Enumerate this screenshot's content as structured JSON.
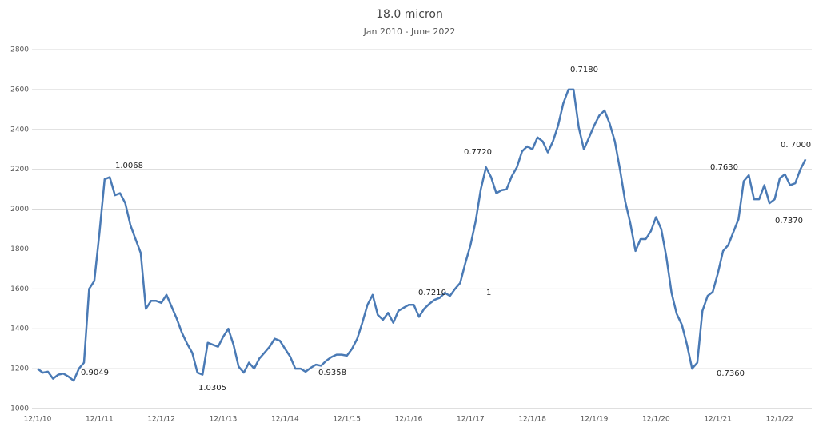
{
  "chart_data": {
    "type": "line",
    "title": "18.0 micron",
    "subtitle": "Jan 2010 - June 2022",
    "categories": [
      "12/1/10",
      null,
      null,
      null,
      null,
      null,
      null,
      null,
      null,
      null,
      null,
      null,
      "12/1/11",
      null,
      null,
      null,
      null,
      null,
      null,
      null,
      null,
      null,
      null,
      null,
      "12/1/12",
      null,
      null,
      null,
      null,
      null,
      null,
      null,
      null,
      null,
      null,
      null,
      "12/1/13",
      null,
      null,
      null,
      null,
      null,
      null,
      null,
      null,
      null,
      null,
      null,
      "12/1/14",
      null,
      null,
      null,
      null,
      null,
      null,
      null,
      null,
      null,
      null,
      null,
      "12/1/15",
      null,
      null,
      null,
      null,
      null,
      null,
      null,
      null,
      null,
      null,
      null,
      "12/1/16",
      null,
      null,
      null,
      null,
      null,
      null,
      null,
      null,
      null,
      null,
      null,
      "12/1/17",
      null,
      null,
      null,
      null,
      null,
      null,
      null,
      null,
      null,
      null,
      null,
      "12/1/18",
      null,
      null,
      null,
      null,
      null,
      null,
      null,
      null,
      null,
      null,
      null,
      "12/1/19",
      null,
      null,
      null,
      null,
      null,
      null,
      null,
      null,
      null,
      null,
      null,
      "12/1/20",
      null,
      null,
      null,
      null,
      null,
      null,
      null,
      null,
      null,
      null,
      null,
      "12/1/21",
      null,
      null,
      null,
      null,
      null,
      null,
      null,
      null,
      null,
      null,
      null,
      "12/1/22",
      null,
      null,
      null,
      null,
      null
    ],
    "series": [
      {
        "color": "#4a7ab5",
        "values": [
          1200,
          1180,
          1185,
          1150,
          1170,
          1175,
          1160,
          1140,
          1200,
          1230,
          1600,
          1640,
          1880,
          2150,
          2160,
          2070,
          2080,
          2030,
          1920,
          1850,
          1780,
          1500,
          1540,
          1540,
          1530,
          1570,
          1510,
          1450,
          1380,
          1325,
          1280,
          1180,
          1170,
          1330,
          1320,
          1310,
          1360,
          1400,
          1320,
          1210,
          1180,
          1230,
          1200,
          1250,
          1280,
          1310,
          1350,
          1340,
          1300,
          1260,
          1200,
          1200,
          1185,
          1205,
          1220,
          1215,
          1240,
          1258,
          1270,
          1270,
          1265,
          1300,
          1350,
          1430,
          1520,
          1570,
          1470,
          1445,
          1480,
          1430,
          1490,
          1505,
          1520,
          1520,
          1460,
          1500,
          1525,
          1545,
          1555,
          1580,
          1565,
          1600,
          1630,
          1730,
          1820,
          1940,
          2100,
          2210,
          2160,
          2080,
          2095,
          2100,
          2165,
          2210,
          2290,
          2315,
          2300,
          2360,
          2340,
          2285,
          2340,
          2420,
          2530,
          2600,
          2600,
          2410,
          2300,
          2360,
          2420,
          2470,
          2495,
          2430,
          2340,
          2200,
          2040,
          1930,
          1790,
          1850,
          1850,
          1890,
          1960,
          1900,
          1760,
          1580,
          1475,
          1420,
          1320,
          1200,
          1230,
          1490,
          1565,
          1585,
          1680,
          1790,
          1820,
          1885,
          1950,
          2140,
          2170,
          2050,
          2050,
          2120,
          2030,
          2050,
          2155,
          2175,
          2120,
          2130,
          2200,
          2250
        ]
      }
    ],
    "ylim": [
      1000,
      2800
    ],
    "yticks": [
      1000,
      1200,
      1400,
      1600,
      1800,
      2000,
      2200,
      2400,
      2600,
      2800
    ],
    "grid": true,
    "annotations": [
      "0.9049",
      "1.0068",
      "1.0305",
      "0.9358",
      "0.7210",
      "1",
      "0.7720",
      "0.7180",
      "0.7360",
      "0.7630",
      "0.7370",
      "0. 7000"
    ]
  }
}
